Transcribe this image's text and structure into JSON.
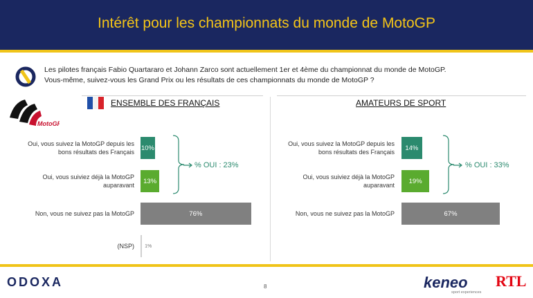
{
  "header": {
    "title": "Intérêt pour les championnats du monde de MotoGP"
  },
  "question": {
    "line1": "Les pilotes français Fabio Quartararo et Johann Zarco sont actuellement 1er et 4ème du championnat du monde de MotoGP.",
    "line2": "Vous-même, suivez-vous les Grand Prix ou les résultats de ces championnats du monde de MotoGP ?"
  },
  "logos": {
    "motogp": "MotoGP",
    "odoxa": "ODOXA",
    "keneo": "keneo",
    "keneo_sub": "sport experiences",
    "rtl": "RTL"
  },
  "colors": {
    "header_bg": "#1a2760",
    "title": "#f5c518",
    "accent_yellow": "#f0c419",
    "dark_green": "#2b8a6e",
    "light_green": "#5aab2f",
    "grey": "#808080"
  },
  "page_number": "8",
  "chart_data": [
    {
      "type": "bar",
      "title": "ENSEMBLE DES FRANÇAIS",
      "categories": [
        "Oui, vous suivez la MotoGP depuis les bons résultats des Français",
        "Oui, vous suiviez déjà la MotoGP auparavant",
        "Non, vous ne suivez pas la MotoGP",
        "(NSP)"
      ],
      "values": [
        10,
        13,
        76,
        1
      ],
      "value_labels": [
        "10%",
        "13%",
        "76%",
        "1%"
      ],
      "bar_colors": [
        "#2b8a6e",
        "#5aab2f",
        "#808080",
        "#d0d0d0"
      ],
      "annotation": "% OUI : 23%",
      "xlim": [
        0,
        100
      ]
    },
    {
      "type": "bar",
      "title": "AMATEURS DE SPORT",
      "categories": [
        "Oui, vous suivez la MotoGP depuis les bons résultats des Français",
        "Oui, vous suiviez déjà la MotoGP auparavant",
        "Non, vous ne suivez pas la MotoGP"
      ],
      "values": [
        14,
        19,
        67
      ],
      "value_labels": [
        "14%",
        "19%",
        "67%"
      ],
      "bar_colors": [
        "#2b8a6e",
        "#5aab2f",
        "#808080"
      ],
      "annotation": "% OUI : 33%",
      "xlim": [
        0,
        100
      ]
    }
  ]
}
